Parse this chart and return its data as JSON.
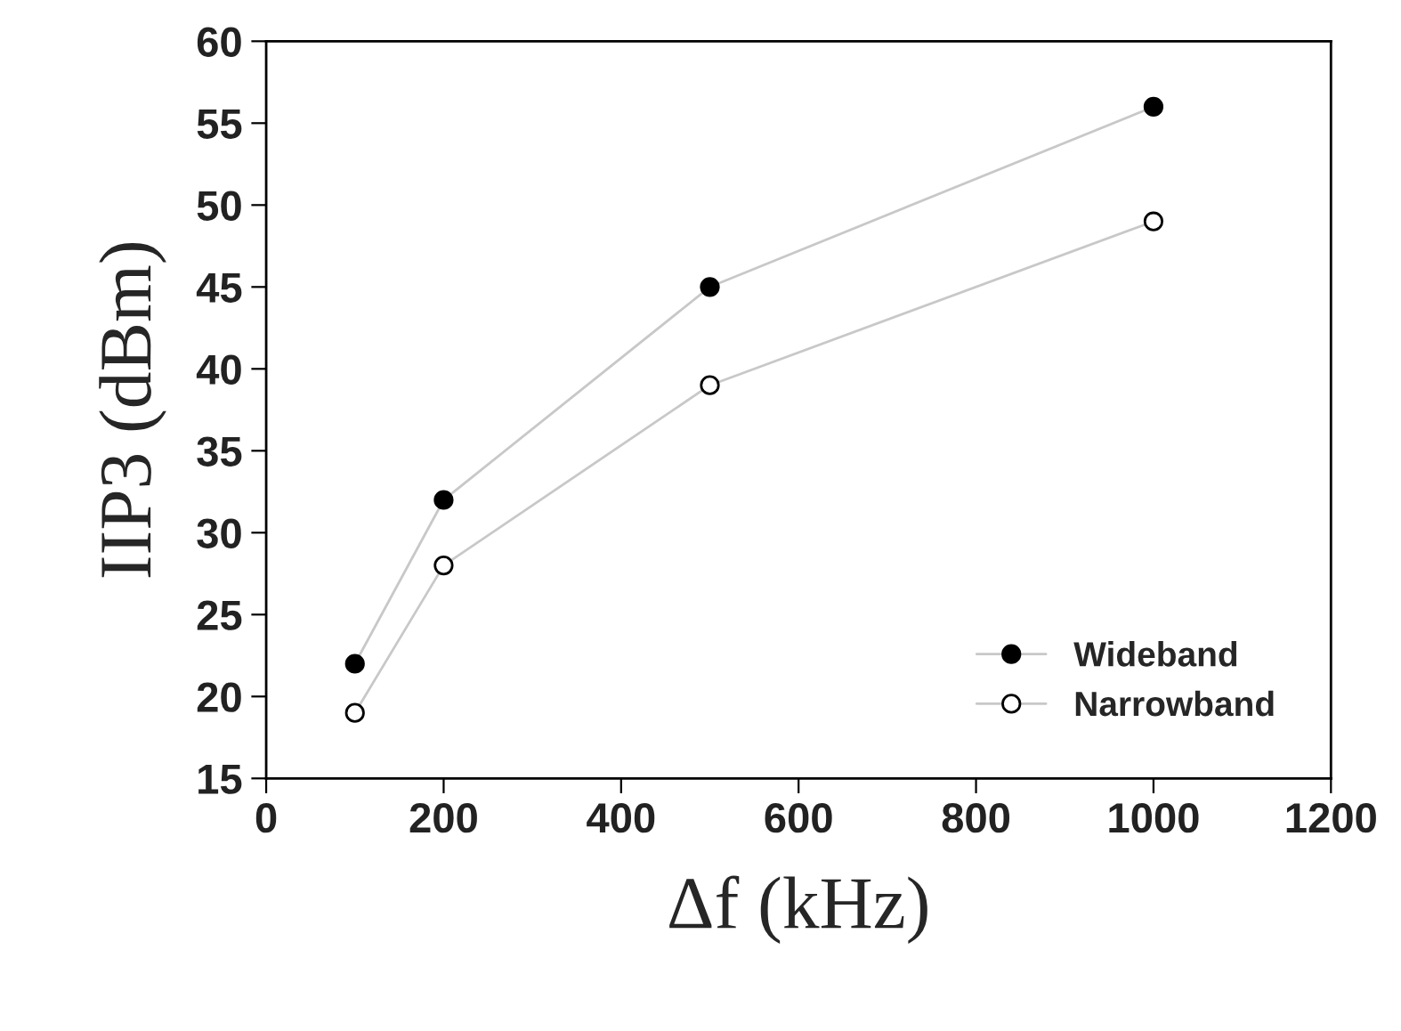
{
  "chart_data": {
    "type": "line",
    "xlabel": "Δf (kHz)",
    "ylabel": "IIP3 (dBm)",
    "x": [
      100,
      200,
      500,
      1000
    ],
    "series": [
      {
        "name": "Wideband",
        "color": "#000000",
        "values": [
          22,
          32,
          45,
          56
        ]
      },
      {
        "name": "Narrowband",
        "color": "#ffffff",
        "values": [
          19,
          28,
          39,
          49
        ]
      }
    ],
    "xlim": [
      0,
      1200
    ],
    "xticks": [
      0,
      200,
      400,
      600,
      800,
      1000,
      1200
    ],
    "ylim": [
      15,
      60
    ],
    "yticks": [
      15,
      20,
      25,
      30,
      35,
      40,
      45,
      50,
      55,
      60
    ],
    "grid": false,
    "legend": "bottom right",
    "marker": "circle",
    "line_style": "solid"
  }
}
